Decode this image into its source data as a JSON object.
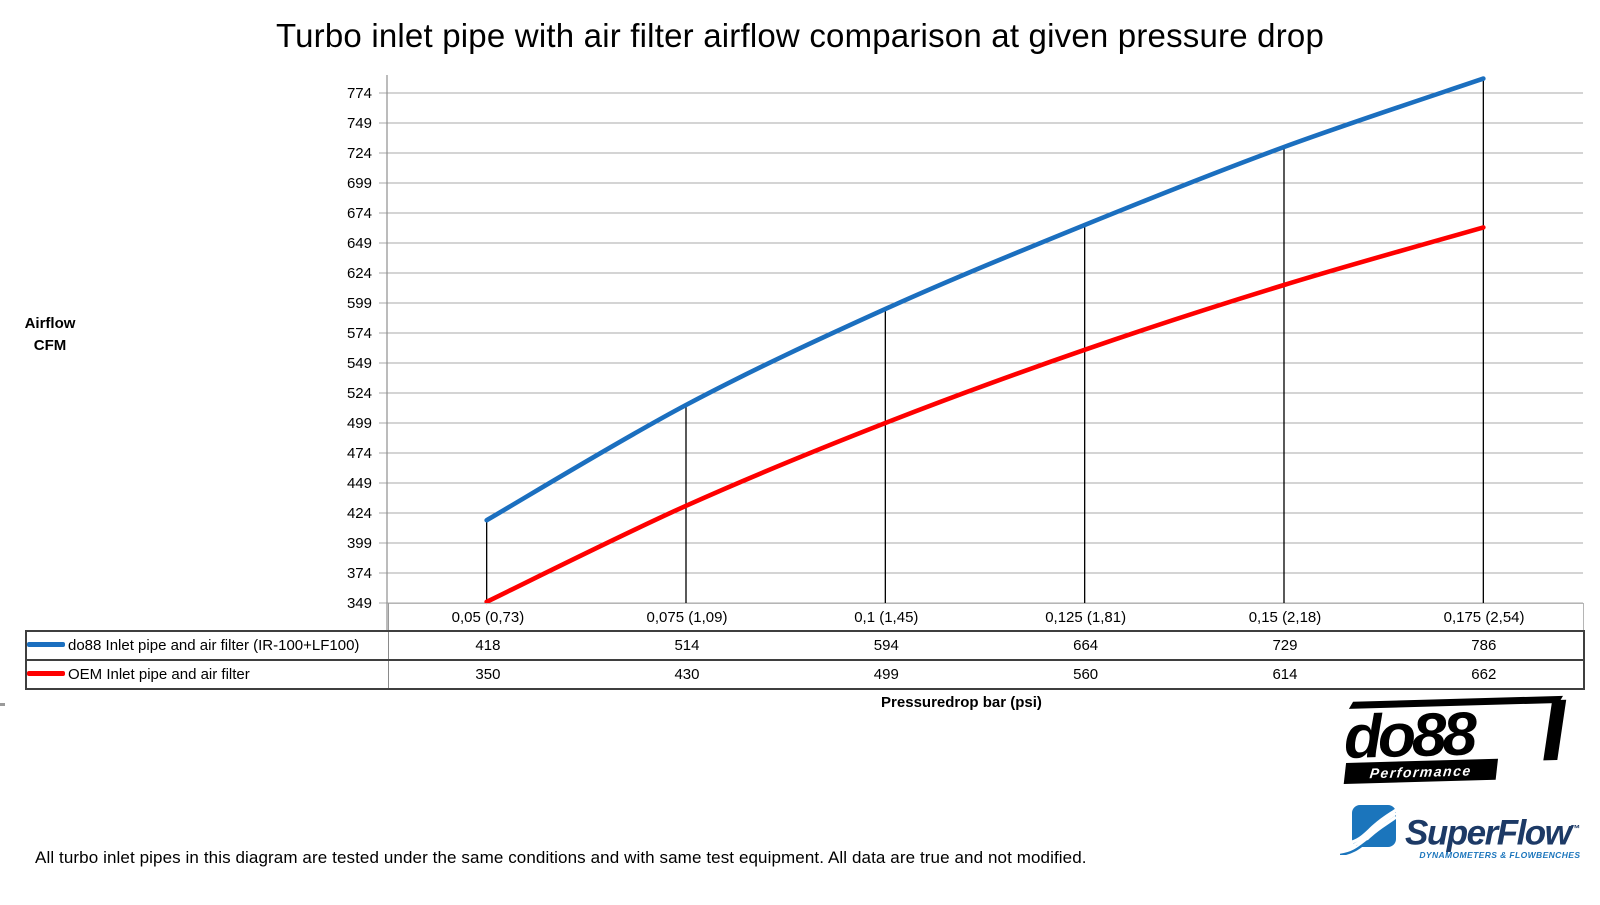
{
  "title": "Turbo inlet pipe with air filter airflow comparison at given pressure drop",
  "y_axis_label": {
    "line1": "Airflow",
    "line2": "CFM"
  },
  "x_axis_title": "Pressuredrop bar (psi)",
  "footer_note": "All turbo inlet pipes in this diagram are tested under the same conditions and with same test equipment. All data are true and not modified.",
  "chart_data": {
    "type": "line",
    "title": "Turbo inlet pipe with air filter airflow comparison at given pressure drop",
    "xlabel": "Pressuredrop bar (psi)",
    "ylabel": "Airflow CFM",
    "categories": [
      "0,05 (0,73)",
      "0,075 (1,09)",
      "0,1 (1,45)",
      "0,125 (1,81)",
      "0,15 (2,18)",
      "0,175 (2,54)"
    ],
    "series": [
      {
        "name": "do88 Inlet pipe and air filter (IR-100+LF100)",
        "color": "#1b6fbf",
        "values": [
          418,
          514,
          594,
          664,
          729,
          786
        ]
      },
      {
        "name": "OEM Inlet pipe and air filter",
        "color": "#fe0000",
        "values": [
          350,
          430,
          499,
          560,
          614,
          662
        ]
      }
    ],
    "y_ticks": [
      349,
      374,
      399,
      424,
      449,
      474,
      499,
      524,
      549,
      574,
      599,
      624,
      649,
      674,
      699,
      724,
      749,
      774
    ],
    "ylim": [
      349,
      774
    ],
    "grid": true,
    "smooth_lines": true,
    "drop_lines": "vertical black line at each category from x-axis up to do88 series point",
    "legend_position": "table below chart with per-category values"
  },
  "colors": {
    "grid": "#a8a8a8",
    "axis": "#8f8f8f",
    "drop_line": "#000000",
    "do88_series": "#1b6fbf",
    "oem_series": "#fe0000",
    "superflow_blue": "#1b75bc",
    "superflow_navy": "#1d3a66"
  },
  "logos": {
    "do88": {
      "text": "do88",
      "subtext": "Performance"
    },
    "superflow": {
      "text": "SuperFlow",
      "tm": "™",
      "subtext": "DYNAMOMETERS & FLOWBENCHES"
    }
  }
}
